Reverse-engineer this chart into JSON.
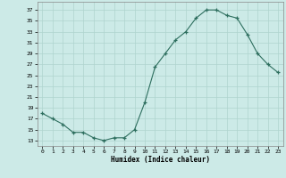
{
  "x": [
    0,
    1,
    2,
    3,
    4,
    5,
    6,
    7,
    8,
    9,
    10,
    11,
    12,
    13,
    14,
    15,
    16,
    17,
    18,
    19,
    20,
    21,
    22,
    23
  ],
  "y": [
    18,
    17,
    16,
    14.5,
    14.5,
    13.5,
    13,
    13.5,
    13.5,
    15,
    20,
    26.5,
    29,
    31.5,
    33,
    35.5,
    37,
    37,
    36,
    35.5,
    32.5,
    29,
    27,
    25.5
  ],
  "line_color": "#2d6e5e",
  "marker_color": "#2d6e5e",
  "bg_color": "#cceae7",
  "grid_color": "#afd4ce",
  "xlabel": "Humidex (Indice chaleur)",
  "yticks": [
    13,
    15,
    17,
    19,
    21,
    23,
    25,
    27,
    29,
    31,
    33,
    35,
    37
  ],
  "xticks": [
    0,
    1,
    2,
    3,
    4,
    5,
    6,
    7,
    8,
    9,
    10,
    11,
    12,
    13,
    14,
    15,
    16,
    17,
    18,
    19,
    20,
    21,
    22,
    23
  ],
  "ylim": [
    12.0,
    38.5
  ],
  "xlim": [
    -0.5,
    23.5
  ]
}
